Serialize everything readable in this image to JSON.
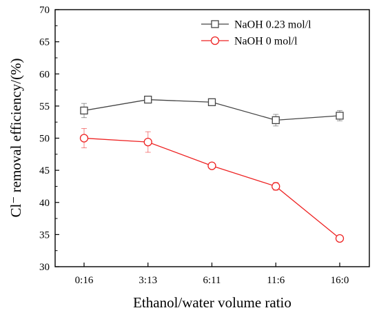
{
  "chart_data": {
    "type": "line",
    "title": "",
    "xlabel": "Ethanol/water volume ratio",
    "ylabel": "Cl⁻ removal efficiency/(%)",
    "categories": [
      "0:16",
      "3:13",
      "6:11",
      "11:6",
      "16:0"
    ],
    "ylim": [
      30,
      70
    ],
    "yticks": [
      30,
      35,
      40,
      45,
      50,
      55,
      60,
      65,
      70
    ],
    "grid": false,
    "legend_position": "top-right",
    "series": [
      {
        "name": "NaOH 0.23 mol/l",
        "color": "#444444",
        "marker": "square",
        "values": [
          54.3,
          56.0,
          55.6,
          52.8,
          53.5
        ],
        "errors": [
          1.1,
          0.4,
          0.3,
          0.9,
          0.8
        ]
      },
      {
        "name": "NaOH 0 mol/l",
        "color": "#ee2222",
        "marker": "circle",
        "values": [
          50.0,
          49.4,
          45.7,
          42.5,
          34.4
        ],
        "errors": [
          1.5,
          1.6,
          0.3,
          0.6,
          0.2
        ]
      }
    ]
  }
}
